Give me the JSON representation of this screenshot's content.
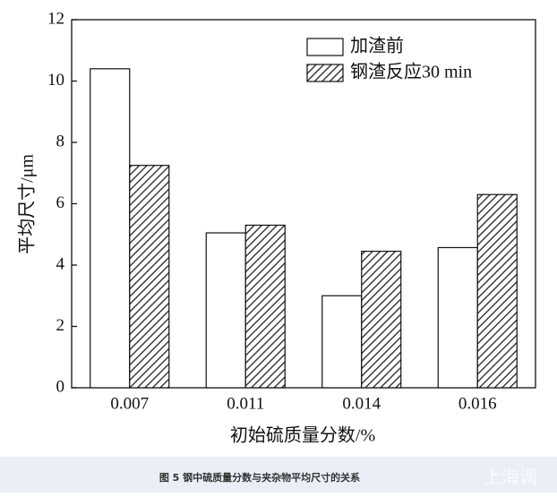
{
  "chart_data": {
    "type": "bar",
    "categories": [
      "0.007",
      "0.011",
      "0.014",
      "0.016"
    ],
    "x_label": "初始硫质量分数/%",
    "y_label": "平均尺寸/μm",
    "series": [
      {
        "name": "加渣前",
        "color": "#ffffff",
        "fill": "solid",
        "values": [
          10.4,
          5.05,
          3.0,
          4.57
        ]
      },
      {
        "name": "钢渣反应30 min",
        "color": "#222222",
        "fill": "hatch",
        "values": [
          7.25,
          5.3,
          4.45,
          6.3
        ]
      }
    ],
    "ylim": [
      0,
      12
    ],
    "yticks": [
      0,
      2,
      4,
      6,
      8,
      10,
      12
    ],
    "legend": "top-right",
    "caption": "图 5 钢中硫质量分数与夹杂物平均尺寸的关系",
    "watermark": "上海调"
  }
}
